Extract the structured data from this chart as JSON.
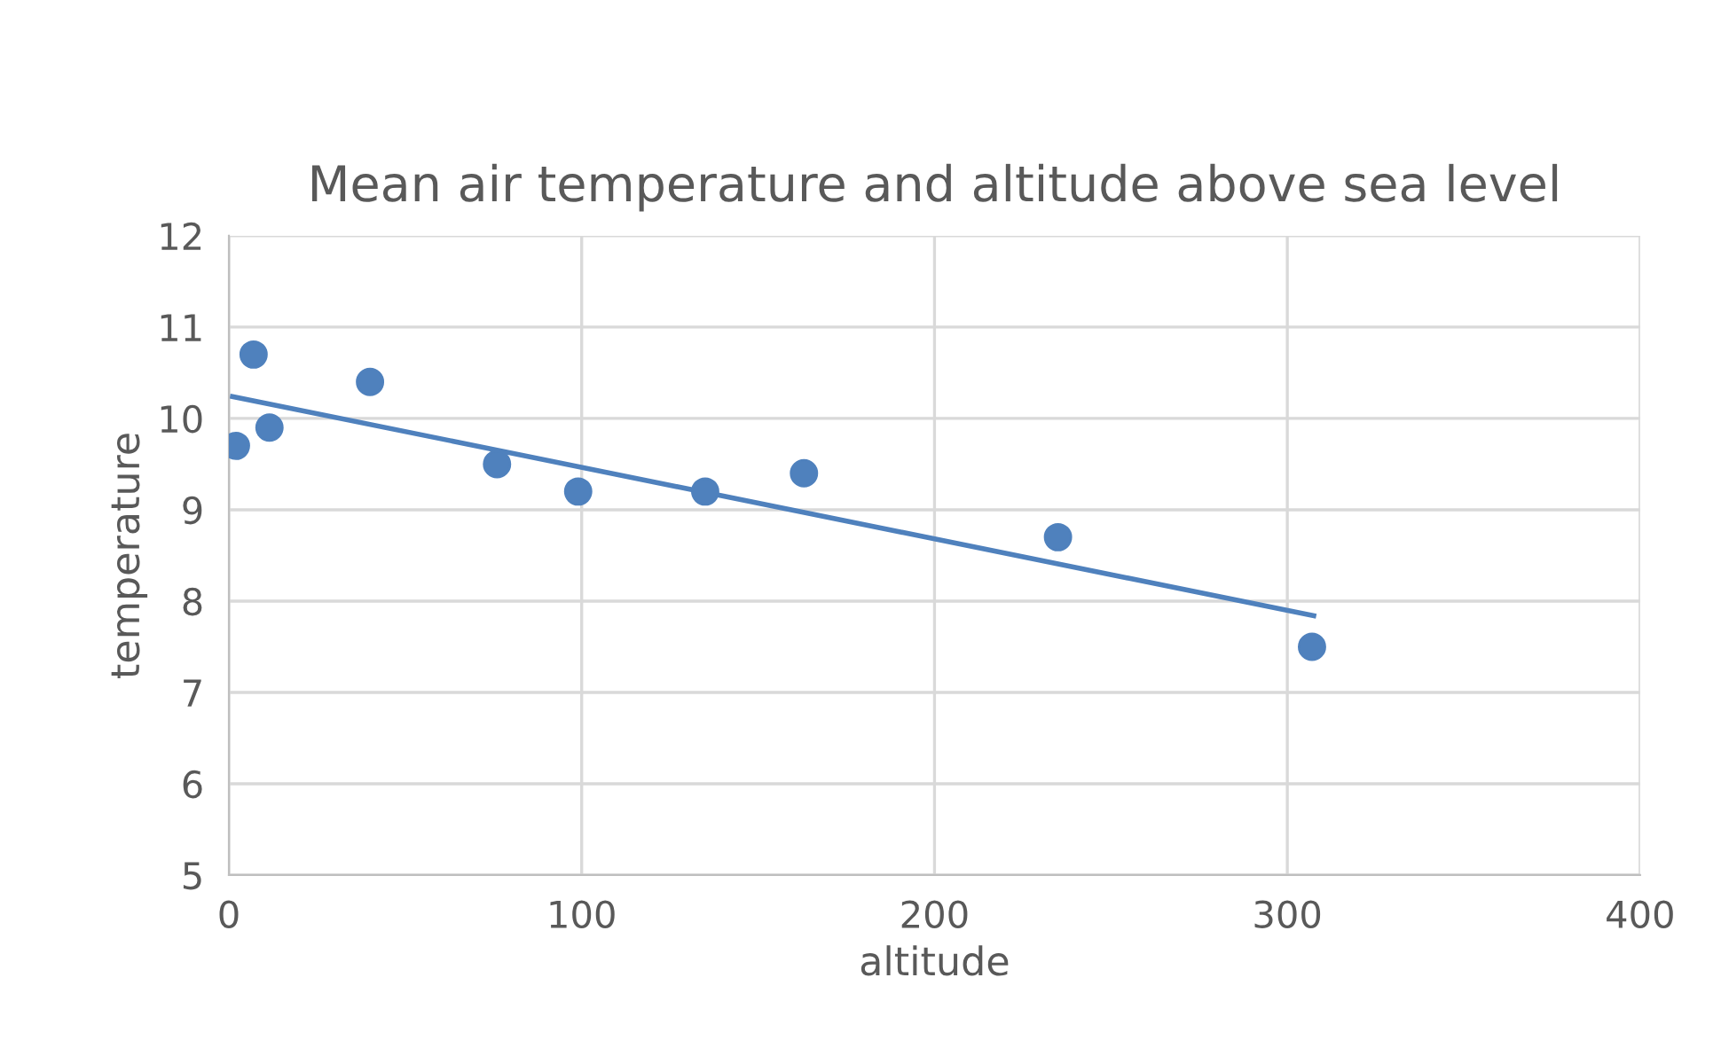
{
  "chart_data": {
    "type": "scatter",
    "title": "Mean air temperature and altitude above sea level",
    "xlabel": "altitude",
    "ylabel": "temperature",
    "series": [
      {
        "color": "#4f81bd",
        "x": [
          2,
          7,
          11.5,
          40,
          76,
          99,
          135,
          163,
          235,
          307
        ],
        "values": [
          9.7,
          10.7,
          9.9,
          10.4,
          9.5,
          9.2,
          9.2,
          9.4,
          8.7,
          7.5
        ],
        "marker": "circle"
      },
      {
        "type": "line",
        "color": "#4f81bd",
        "x": [
          1,
          307.5
        ],
        "values": [
          10.24,
          7.84
        ],
        "marker": "none"
      }
    ],
    "xlim": [
      0,
      400
    ],
    "ylim": [
      5,
      12
    ],
    "xticks": [
      0,
      100,
      200,
      300,
      400
    ],
    "yticks": [
      5,
      6,
      7,
      8,
      9,
      10,
      11,
      12
    ],
    "grid": true,
    "legend": false
  }
}
